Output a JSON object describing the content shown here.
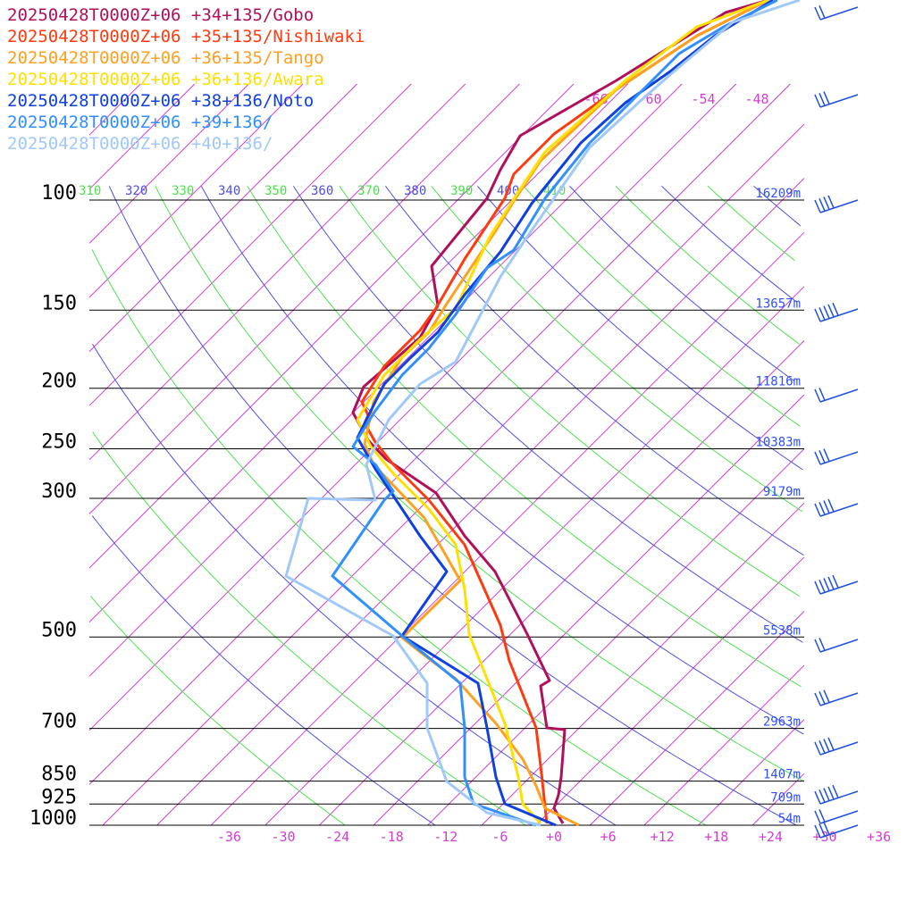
{
  "chart_data": {
    "type": "line",
    "title": "",
    "xlabel": "",
    "ylabel": "",
    "pressure_levels": [
      {
        "p": 100,
        "label": "100",
        "height": "16209m"
      },
      {
        "p": 150,
        "label": "150",
        "height": "13657m"
      },
      {
        "p": 200,
        "label": "200",
        "height": "11816m"
      },
      {
        "p": 250,
        "label": "250",
        "height": "10383m"
      },
      {
        "p": 300,
        "label": "300",
        "height": "9179m"
      },
      {
        "p": 500,
        "label": "500",
        "height": "5538m"
      },
      {
        "p": 700,
        "label": "700",
        "height": "2963m"
      },
      {
        "p": 850,
        "label": "850",
        "height": "1407m"
      },
      {
        "p": 925,
        "label": "925",
        "height": "709m"
      },
      {
        "p": 1000,
        "label": "1000",
        "height": "54m"
      }
    ],
    "x_ticks": [
      "-36",
      "-30",
      "-24",
      "-18",
      "-12",
      "-6",
      "+0",
      "+6",
      "+12",
      "+18",
      "+24",
      "+30",
      "+36"
    ],
    "x_tick_values": [
      -36,
      -30,
      -24,
      -18,
      -12,
      -6,
      0,
      6,
      12,
      18,
      24,
      30,
      36
    ],
    "theta_labels": [
      {
        "text": "310",
        "color": "#50e050"
      },
      {
        "text": "320",
        "color": "#5050e0"
      },
      {
        "text": "330",
        "color": "#50e050"
      },
      {
        "text": "340",
        "color": "#5050e0"
      },
      {
        "text": "350",
        "color": "#50e050"
      },
      {
        "text": "360",
        "color": "#5050e0"
      },
      {
        "text": "370",
        "color": "#50e050"
      },
      {
        "text": "380",
        "color": "#5050e0"
      },
      {
        "text": "390",
        "color": "#50e050"
      },
      {
        "text": "400",
        "color": "#5050e0"
      },
      {
        "text": "410",
        "color": "#50e050"
      }
    ],
    "isotherm_top_labels": [
      "-66",
      "-60",
      "-54",
      "-48"
    ],
    "colors": {
      "isotherm": "#d040d0",
      "dry_adiabat_blue": "#5050e0",
      "dry_adiabat_green": "#50e050",
      "pressure_line": "#000000",
      "wind_barb": "#2050e0"
    },
    "series": [
      {
        "name": "20250428T0000Z+06 +34+135/Gobo",
        "color": "#b0105a"
      },
      {
        "name": "20250428T0000Z+06 +35+135/Nishiwaki",
        "color": "#ff3a10"
      },
      {
        "name": "20250428T0000Z+06 +36+135/Tango",
        "color": "#ffa020"
      },
      {
        "name": "20250428T0000Z+06 +36+136/Awara",
        "color": "#ffe000"
      },
      {
        "name": "20250428T0000Z+06 +38+136/Noto",
        "color": "#1040e0"
      },
      {
        "name": "20250428T0000Z+06 +39+136/",
        "color": "#3090ff"
      },
      {
        "name": "20250428T0000Z+06 +40+136/",
        "color": "#a0c8f8"
      }
    ]
  }
}
